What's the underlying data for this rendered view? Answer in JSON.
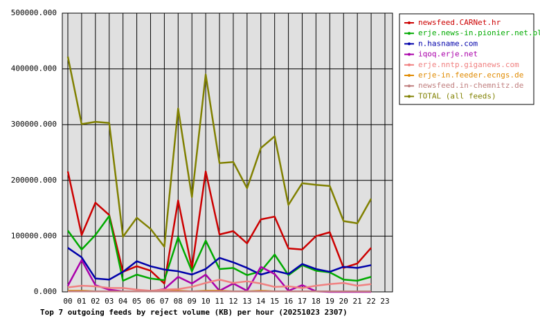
{
  "chart_data": {
    "type": "line",
    "title": "Top 7 outgoing feeds by reject volume (KB) per hour (20251023 2307)",
    "categories": [
      "00",
      "01",
      "02",
      "03",
      "04",
      "05",
      "06",
      "07",
      "08",
      "09",
      "10",
      "11",
      "12",
      "13",
      "14",
      "15",
      "16",
      "17",
      "18",
      "19",
      "20",
      "21",
      "22",
      "23"
    ],
    "ylim": [
      0,
      500000
    ],
    "yticks": [
      {
        "value": 0,
        "label": "0.000"
      },
      {
        "value": 100000,
        "label": "100000.000"
      },
      {
        "value": 200000,
        "label": "200000.000"
      },
      {
        "value": 300000,
        "label": "300000.000"
      },
      {
        "value": 400000,
        "label": "400000.000"
      },
      {
        "value": 500000,
        "label": "500000.000"
      }
    ],
    "grid": true,
    "legend": "right",
    "series": [
      {
        "name": "newsfeed.CARNet.hr",
        "color": "#cc0000",
        "values": [
          216000,
          102000,
          160000,
          138000,
          36000,
          46000,
          38000,
          15000,
          164000,
          42000,
          216000,
          103000,
          109000,
          87000,
          130000,
          135000,
          78000,
          76000,
          100000,
          107000,
          43000,
          51000,
          79000,
          null
        ]
      },
      {
        "name": "erje.news-in.pionier.net.pl",
        "color": "#00aa00",
        "values": [
          110000,
          76000,
          102000,
          136000,
          20000,
          31000,
          24000,
          21000,
          98000,
          37000,
          92000,
          41000,
          43000,
          30000,
          37000,
          67000,
          30000,
          48000,
          38000,
          35000,
          22000,
          20000,
          27000,
          null
        ]
      },
      {
        "name": "n.hasname.com",
        "color": "#0000aa",
        "values": [
          79000,
          62000,
          24000,
          22000,
          36000,
          55000,
          46000,
          40000,
          37000,
          31000,
          41000,
          61000,
          53000,
          43000,
          31000,
          38000,
          32000,
          50000,
          41000,
          36000,
          45000,
          43000,
          48000,
          null
        ]
      },
      {
        "name": "iqoq.erje.net",
        "color": "#aa00aa",
        "values": [
          11000,
          57000,
          12000,
          4000,
          1000,
          1000,
          1000,
          5000,
          27000,
          15000,
          31000,
          2000,
          15000,
          2000,
          45000,
          32000,
          2000,
          12000,
          1000,
          0,
          0,
          0,
          0,
          null
        ]
      },
      {
        "name": "erje.nntp.giganews.com",
        "color": "#f08080",
        "values": [
          8000,
          11000,
          10000,
          7000,
          7000,
          4000,
          2000,
          4000,
          5000,
          9000,
          16000,
          22000,
          16000,
          19000,
          15000,
          9000,
          10000,
          7000,
          11000,
          14000,
          16000,
          11000,
          14000,
          null
        ]
      },
      {
        "name": "erje-in.feeder.ecngs.de",
        "color": "#e08a00",
        "values": [
          2000,
          2000,
          1000,
          1000,
          1000,
          1000,
          1000,
          1000,
          2000,
          1000,
          2000,
          2000,
          1000,
          1000,
          2000,
          1000,
          1000,
          1000,
          1000,
          1000,
          1000,
          1000,
          1000,
          null
        ]
      },
      {
        "name": "newsfeed.in-chemnitz.de",
        "color": "#c08080",
        "values": [
          1000,
          1000,
          1000,
          1000,
          1000,
          1000,
          1000,
          1000,
          1000,
          1000,
          1000,
          1000,
          1000,
          1000,
          1000,
          1000,
          1000,
          1000,
          1000,
          1000,
          1000,
          1000,
          1000,
          null
        ]
      },
      {
        "name": "TOTAL (all feeds)",
        "color": "#808000",
        "values": [
          422000,
          301000,
          305000,
          303000,
          99000,
          133000,
          113000,
          81000,
          329000,
          170000,
          390000,
          231000,
          233000,
          186000,
          258000,
          279000,
          156000,
          195000,
          192000,
          190000,
          127000,
          123000,
          167000,
          null
        ]
      }
    ]
  }
}
